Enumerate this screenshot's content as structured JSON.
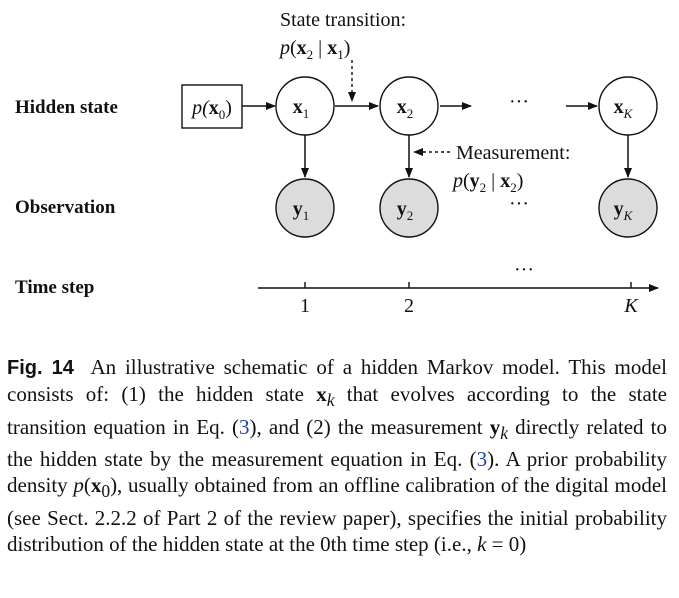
{
  "labels": {
    "hidden_state": "Hidden state",
    "observation": "Observation",
    "time_step": "Time step"
  },
  "annotations": {
    "state_transition_title": "State transition:",
    "measurement_title": "Measurement:"
  },
  "nodes": {
    "x1": "x",
    "x1_sub": "1",
    "x2": "x",
    "x2_sub": "2",
    "xK": "x",
    "xK_sub": "K",
    "y1": "y",
    "y1_sub": "1",
    "y2": "y",
    "y2_sub": "2",
    "yK": "y",
    "yK_sub": "K",
    "prior_p": "p(",
    "prior_x": "x",
    "prior_sub": "0",
    "prior_close": ")"
  },
  "ellipses": {
    "hidden": "···",
    "observation": "···",
    "time": "···"
  },
  "time_ticks": [
    "1",
    "2",
    "K"
  ],
  "caption": {
    "fig_label": "Fig. 14",
    "text_1": "An illustrative schematic of a hidden Markov model. This model consists of: (1) the hidden state ",
    "xk_symbol": "x",
    "xk_sub": "k",
    "text_2": " that evolves according to the state transition equation in Eq. (",
    "ref_1": "3",
    "text_3": "), and (2) the measurement ",
    "yk_symbol": "y",
    "yk_sub": "k",
    "text_4": " directly related to the hidden state by the measurement equation in Eq. (",
    "ref_2": "3",
    "text_5": "). A prior probability density ",
    "p_symbol": "p",
    "x0_symbol": "x",
    "x0_sub": "0",
    "text_6": "), usually obtained from an offline calibration of the digital model (see Sect. 2.2.2 of Part 2 of the review paper), specifies the initial probability distribution of the hidden state at the 0th time step (i.e., ",
    "k_symbol": "k",
    "text_7": " = 0)"
  },
  "colors": {
    "observed_node_fill": "#dcdcdc",
    "hidden_node_fill": "#ffffff",
    "stroke": "#111111",
    "reference_link": "#1a3fbf"
  }
}
